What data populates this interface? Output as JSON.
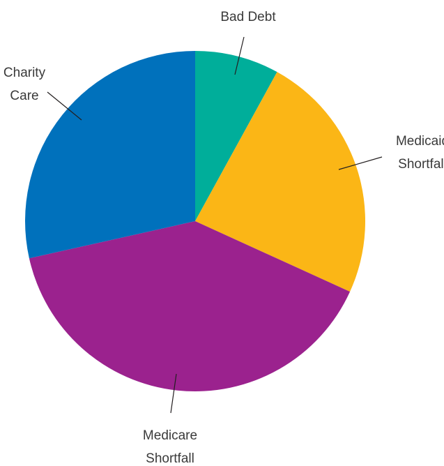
{
  "chart_data": {
    "type": "pie",
    "start_angle_deg": 0,
    "direction": "clockwise",
    "slices": [
      {
        "label": [
          "Bad Debt"
        ],
        "value": 8,
        "color": "#00ae9a"
      },
      {
        "label": [
          "Medicaid",
          "Shortfall"
        ],
        "value": 23.8,
        "color": "#fbb616"
      },
      {
        "label": [
          "Medicare",
          "Shortfall"
        ],
        "value": 39.7,
        "color": "#9b228e"
      },
      {
        "label": [
          "Charity",
          "Care"
        ],
        "value": 28.5,
        "color": "#0071bc"
      }
    ]
  }
}
